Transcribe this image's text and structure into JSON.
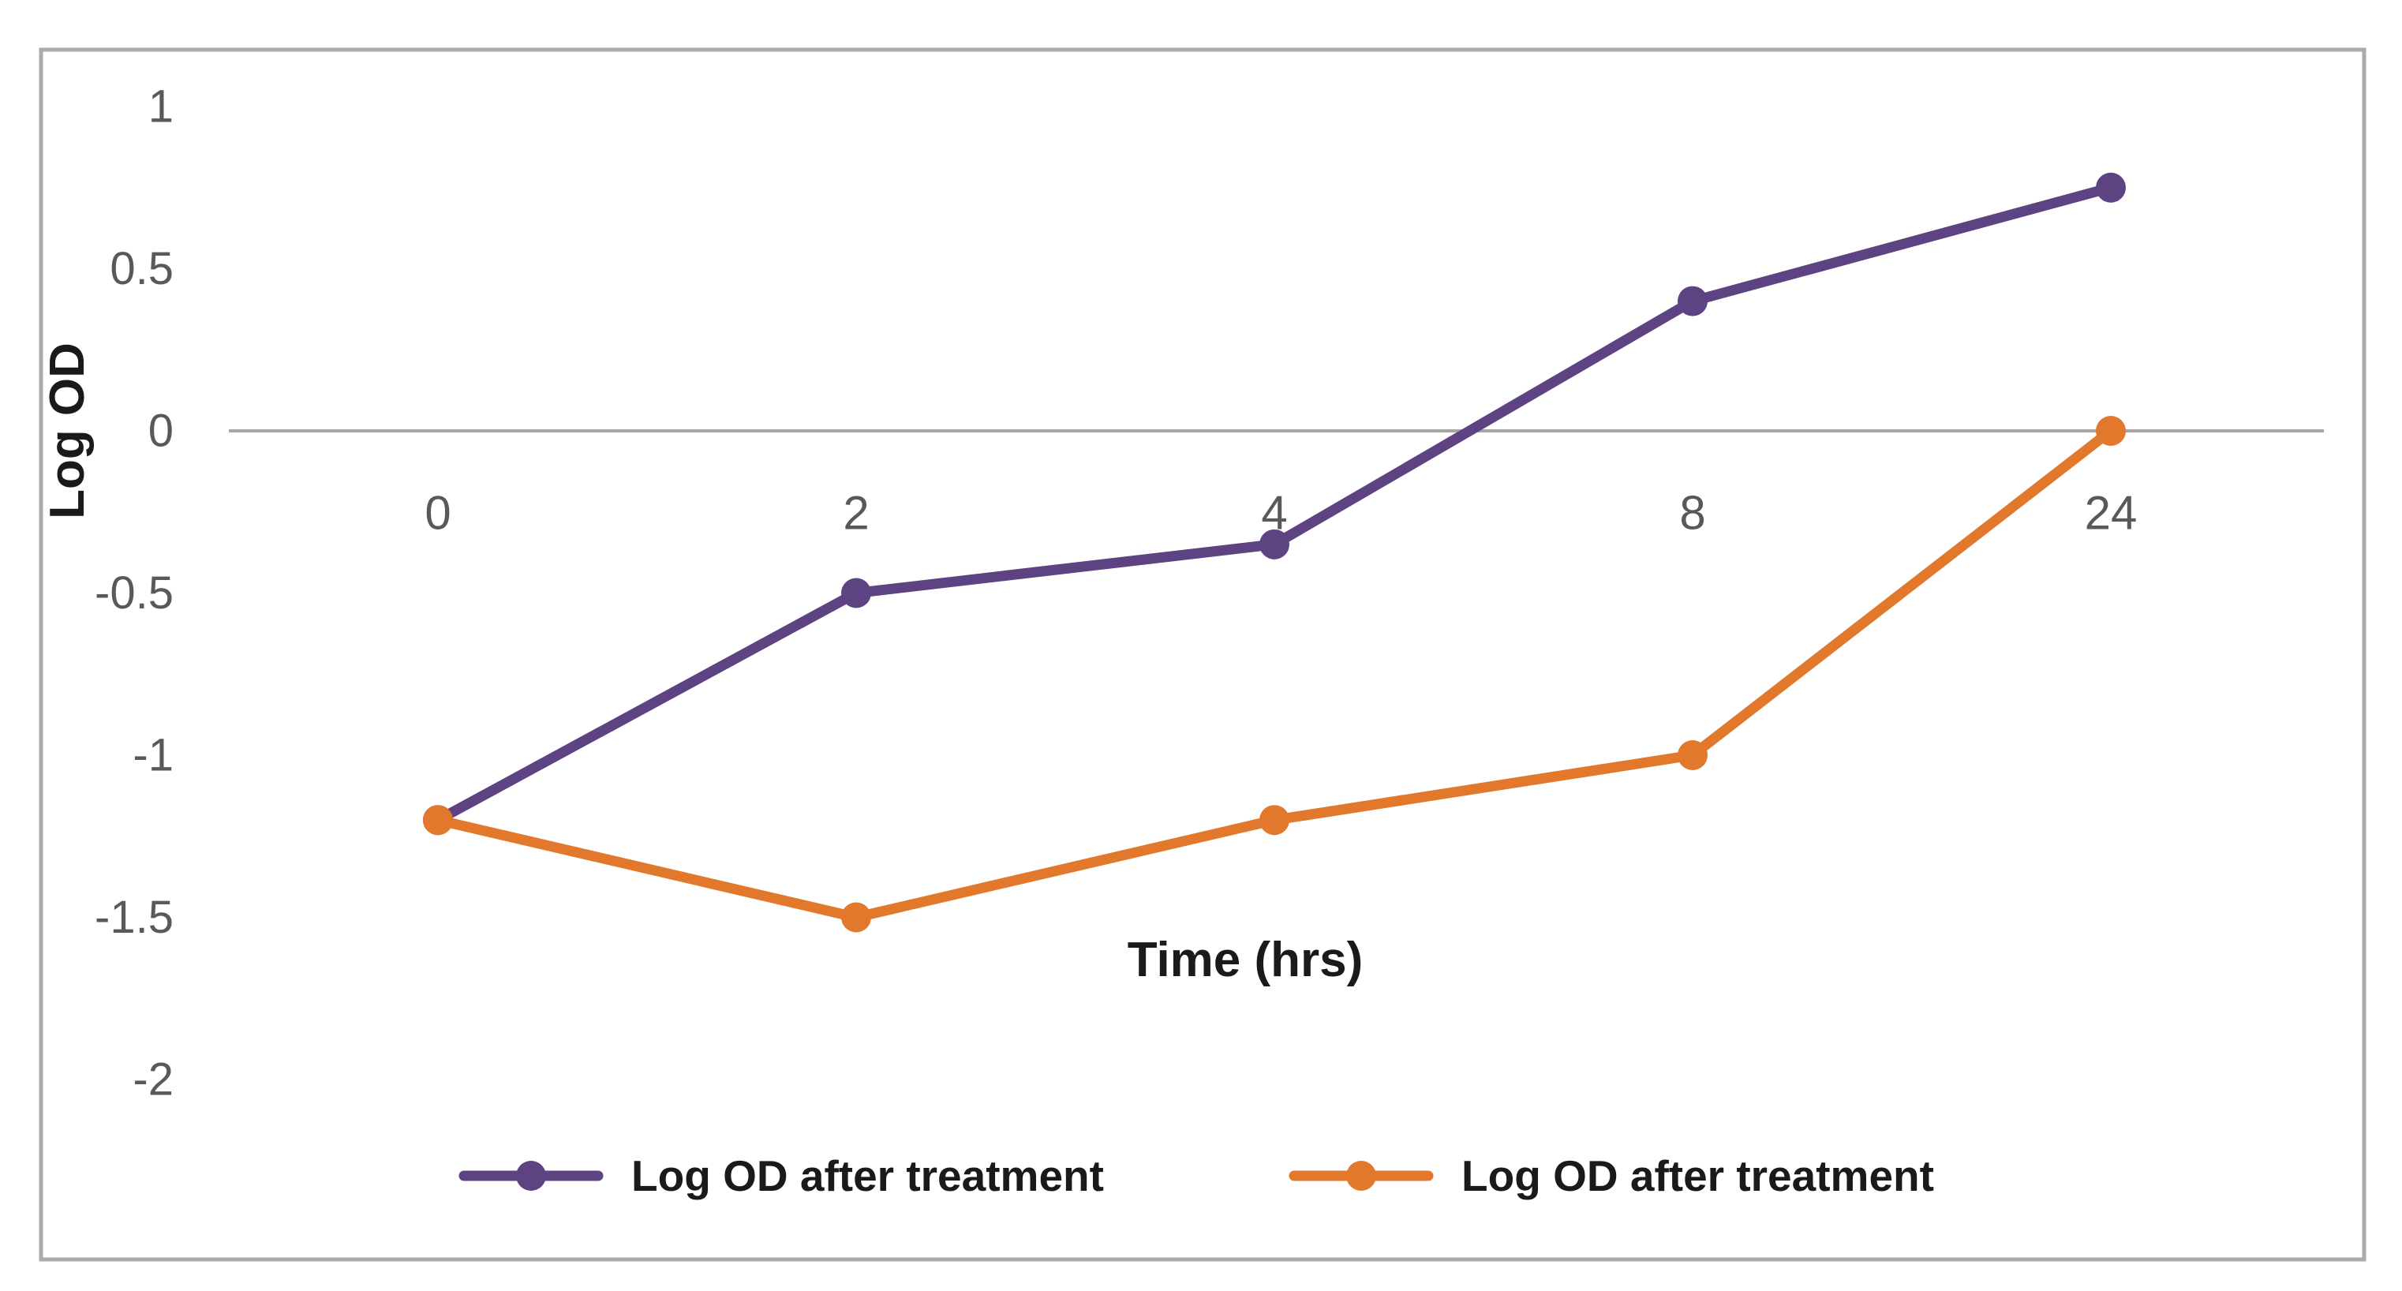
{
  "chart_data": {
    "type": "line",
    "title": "",
    "xlabel": "Time (hrs)",
    "ylabel": "Log OD",
    "categories": [
      "0",
      "2",
      "4",
      "8",
      "24"
    ],
    "series": [
      {
        "name": "Log OD after treatment",
        "color": "#5E4383",
        "values": [
          -1.2,
          -0.5,
          -0.35,
          0.4,
          0.75
        ]
      },
      {
        "name": "Log OD after treatment",
        "color": "#E2782B",
        "values": [
          -1.2,
          -1.5,
          -1.2,
          -1.0,
          0.0
        ]
      }
    ],
    "yticks": [
      "1",
      "0.5",
      "0",
      "-0.5",
      "-1",
      "-1.5",
      "-2"
    ],
    "ylim": [
      -2.35,
      1.25
    ],
    "grid": "zero-axis-line-only",
    "legend_position": "bottom",
    "marker": "circle"
  },
  "colors": {
    "background": "#FFFFFF",
    "frame_border": "#ABABAB",
    "zero_line": "#A6A6A6",
    "tick_label": "#595959",
    "axis_title": "#1A1A1A",
    "legend_text": "#1A1A1A",
    "series_purple": "#5E4383",
    "series_orange": "#E2782B"
  }
}
